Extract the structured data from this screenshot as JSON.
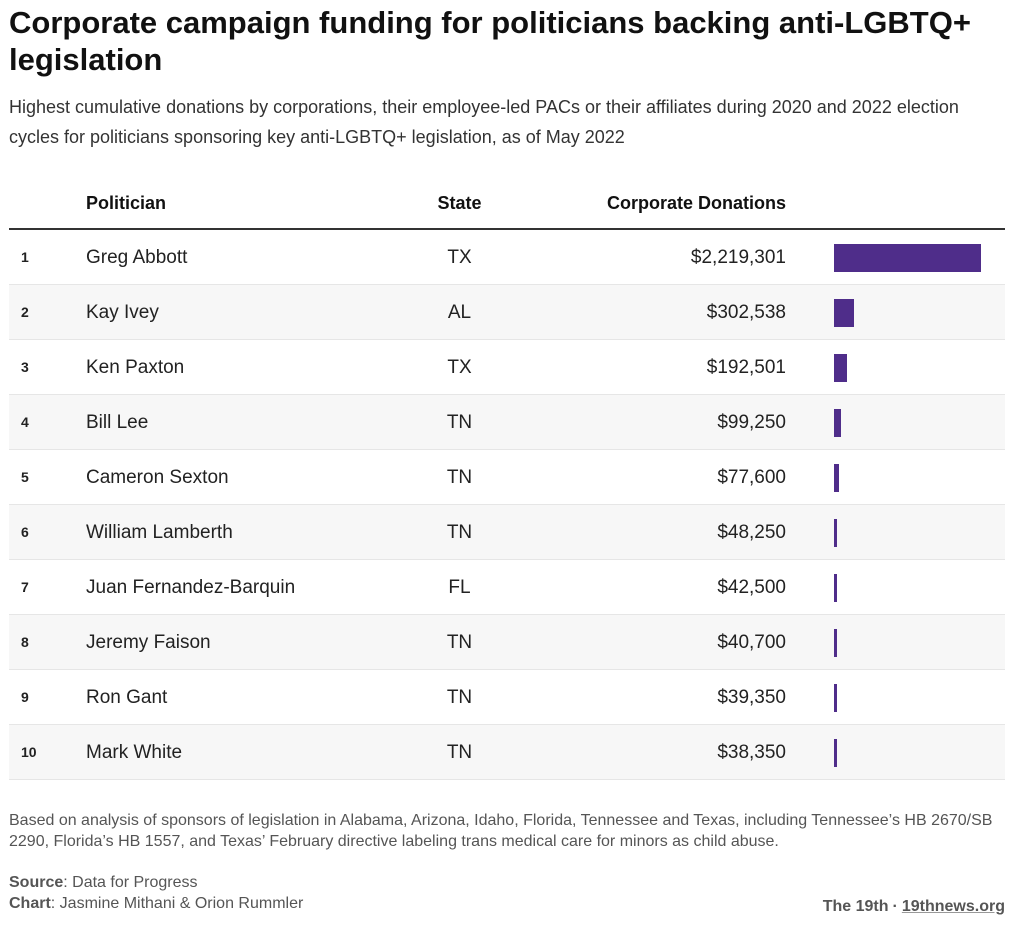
{
  "title": "Corporate campaign funding for politicians backing anti-LGBTQ+ legislation",
  "subtitle": "Highest cumulative donations by corporations, their employee-led PACs or their affiliates during 2020 and 2022 election cycles for politicians sponsoring key anti-LGBTQ+ legislation, as of May 2022",
  "headers": {
    "politician": "Politician",
    "state": "State",
    "donations": "Corporate Donations"
  },
  "bar_color": "#4f2d8a",
  "chart_data": {
    "type": "table",
    "columns": [
      "",
      "Politician",
      "State",
      "Corporate Donations"
    ],
    "rows": [
      {
        "rank": "1",
        "name": "Greg Abbott",
        "state": "TX",
        "amount": "$2,219,301",
        "value": 2219301
      },
      {
        "rank": "2",
        "name": "Kay Ivey",
        "state": "AL",
        "amount": "$302,538",
        "value": 302538
      },
      {
        "rank": "3",
        "name": "Ken Paxton",
        "state": "TX",
        "amount": "$192,501",
        "value": 192501
      },
      {
        "rank": "4",
        "name": "Bill Lee",
        "state": "TN",
        "amount": "$99,250",
        "value": 99250
      },
      {
        "rank": "5",
        "name": "Cameron Sexton",
        "state": "TN",
        "amount": "$77,600",
        "value": 77600
      },
      {
        "rank": "6",
        "name": "William Lamberth",
        "state": "TN",
        "amount": "$48,250",
        "value": 48250
      },
      {
        "rank": "7",
        "name": "Juan Fernandez-Barquin",
        "state": "FL",
        "amount": "$42,500",
        "value": 42500
      },
      {
        "rank": "8",
        "name": "Jeremy Faison",
        "state": "TN",
        "amount": "$40,700",
        "value": 40700
      },
      {
        "rank": "9",
        "name": "Ron Gant",
        "state": "TN",
        "amount": "$39,350",
        "value": 39350
      },
      {
        "rank": "10",
        "name": "Mark White",
        "state": "TN",
        "amount": "$38,350",
        "value": 38350
      }
    ]
  },
  "note": "Based on analysis of sponsors of legislation in Alabama, Arizona, Idaho, Florida, Tennessee and Texas, including Tennessee’s HB 2670/SB 2290, Florida’s HB 1557, and Texas’ February directive labeling trans medical care for minors as child abuse.",
  "credits": {
    "source_label": "Source",
    "source_text": ": Data for Progress",
    "chart_label": "Chart",
    "chart_text": ": Jasmine Mithani & Orion Rummler"
  },
  "brand": {
    "name": "The 19th",
    "separator": "·",
    "link": "19thnews.org"
  }
}
